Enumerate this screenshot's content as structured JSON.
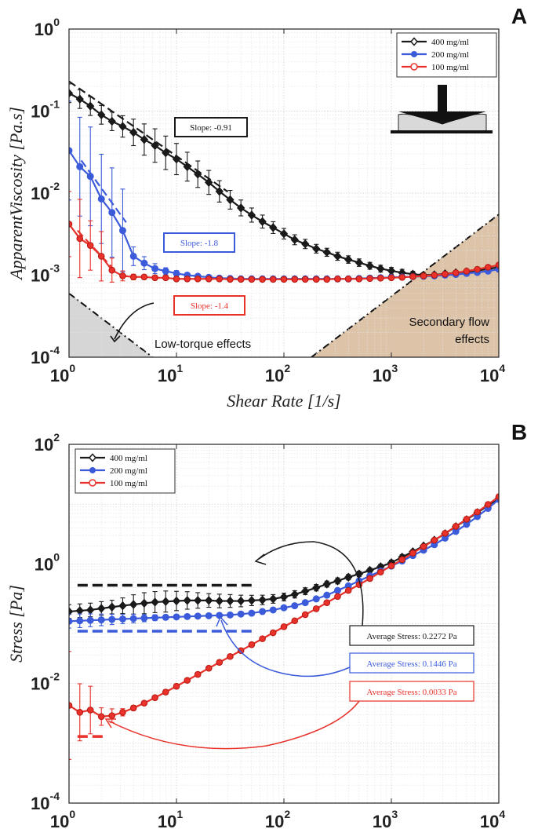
{
  "chart_data": [
    {
      "panel": "A",
      "type": "line",
      "xlabel": "Shear Rate [1/s]",
      "ylabel": "ApparentViscosity [Pa.s]",
      "xscale": "log",
      "yscale": "log",
      "xlim": [
        1,
        10000
      ],
      "ylim": [
        0.0001,
        1
      ],
      "grid": true,
      "legend_position": "top-right",
      "x_ticks": [
        {
          "base": "10",
          "exp": "0"
        },
        {
          "base": "10",
          "exp": "1"
        },
        {
          "base": "10",
          "exp": "2"
        },
        {
          "base": "10",
          "exp": "3"
        },
        {
          "base": "10",
          "exp": "4"
        }
      ],
      "y_ticks": [
        {
          "base": "10",
          "exp": "-4"
        },
        {
          "base": "10",
          "exp": "-3"
        },
        {
          "base": "10",
          "exp": "-2"
        },
        {
          "base": "10",
          "exp": "-1"
        },
        {
          "base": "10",
          "exp": "0"
        }
      ],
      "series": [
        {
          "name": "400 mg/ml",
          "color": "#1a1a1a",
          "marker": "diamond",
          "x": [
            1.0,
            1.26,
            1.58,
            2.0,
            2.51,
            3.16,
            3.98,
            5.01,
            6.31,
            7.94,
            10.0,
            12.6,
            15.8,
            20.0,
            25.1,
            31.6,
            39.8,
            50.1,
            63.1,
            79.4,
            100,
            126,
            158,
            200,
            251,
            316,
            398,
            501,
            631,
            794,
            1000,
            1259,
            1585,
            1995,
            2512,
            3162,
            3981,
            5012,
            6310,
            7943,
            10000
          ],
          "y": [
            0.165,
            0.14,
            0.115,
            0.09,
            0.075,
            0.065,
            0.055,
            0.045,
            0.038,
            0.031,
            0.026,
            0.021,
            0.017,
            0.0135,
            0.0105,
            0.0083,
            0.0066,
            0.0054,
            0.0045,
            0.0038,
            0.0032,
            0.0027,
            0.0024,
            0.0021,
            0.0019,
            0.0017,
            0.00155,
            0.00142,
            0.0013,
            0.0012,
            0.00113,
            0.00107,
            0.00103,
            0.001,
            0.00101,
            0.00104,
            0.00107,
            0.0011,
            0.00114,
            0.00119,
            0.00125
          ],
          "err_factor": [
            1.3,
            1.3,
            1.3,
            1.3,
            1.3,
            1.35,
            1.45,
            1.55,
            1.6,
            1.6,
            1.55,
            1.5,
            1.45,
            1.4,
            1.35,
            1.3,
            1.25,
            1.22,
            1.2,
            1.18,
            1.16,
            1.15,
            1.14,
            1.13,
            1.12,
            1.12,
            1.11,
            1.11,
            1.1,
            1.1,
            1.1,
            1.1,
            1.08,
            1.06,
            1.06,
            1.06,
            1.06,
            1.06,
            1.06,
            1.06,
            1.06
          ]
        },
        {
          "name": "200 mg/ml",
          "color": "#3b5bdb",
          "marker": "circle",
          "x": [
            1.0,
            1.26,
            1.58,
            2.0,
            2.51,
            3.16,
            3.98,
            5.01,
            6.31,
            7.94,
            10.0,
            12.6,
            15.8,
            20.0,
            25.1,
            31.6,
            39.8,
            50.1,
            63.1,
            79.4,
            100,
            126,
            158,
            200,
            251,
            316,
            398,
            501,
            631,
            794,
            1000,
            1259,
            1585,
            1995,
            2512,
            3162,
            3981,
            5012,
            6310,
            7943,
            10000
          ],
          "y": [
            0.033,
            0.021,
            0.016,
            0.0085,
            0.0058,
            0.0035,
            0.0017,
            0.0014,
            0.0012,
            0.00112,
            0.00105,
            0.001,
            0.00097,
            0.00094,
            0.00092,
            0.00091,
            0.0009,
            0.0009,
            0.0009,
            0.0009,
            0.0009,
            0.0009,
            0.0009,
            0.0009,
            0.0009,
            0.0009,
            0.0009,
            0.00091,
            0.00092,
            0.00093,
            0.00094,
            0.00095,
            0.00096,
            0.00097,
            0.00098,
            0.001,
            0.00102,
            0.00105,
            0.00108,
            0.00112,
            0.00118
          ],
          "err_factor": [
            4.0,
            4.0,
            4.0,
            3.5,
            3.5,
            3.2,
            1.3,
            1.2,
            1.15,
            1.1,
            1.08,
            1.06,
            1.05,
            1.05,
            1.05,
            1.04,
            1.04,
            1.04,
            1.04,
            1.04,
            1.04,
            1.04,
            1.04,
            1.04,
            1.04,
            1.04,
            1.04,
            1.04,
            1.04,
            1.04,
            1.04,
            1.04,
            1.04,
            1.04,
            1.04,
            1.04,
            1.04,
            1.04,
            1.04,
            1.04,
            1.04
          ]
        },
        {
          "name": "100 mg/ml",
          "color": "#e8322b",
          "marker": "open-circle",
          "x": [
            1.0,
            1.26,
            1.58,
            2.0,
            2.51,
            3.16,
            3.98,
            5.01,
            6.31,
            7.94,
            10.0,
            12.6,
            15.8,
            20.0,
            25.1,
            31.6,
            39.8,
            50.1,
            63.1,
            79.4,
            100,
            126,
            158,
            200,
            251,
            316,
            398,
            501,
            631,
            794,
            1000,
            1259,
            1585,
            1995,
            2512,
            3162,
            3981,
            5012,
            6310,
            7943,
            10000
          ],
          "y": [
            0.0042,
            0.0028,
            0.0023,
            0.0017,
            0.00115,
            0.00098,
            0.00095,
            0.00095,
            0.00093,
            0.00093,
            0.0009,
            0.0009,
            0.0009,
            0.0009,
            0.0009,
            0.00089,
            0.00089,
            0.00089,
            0.00089,
            0.00089,
            0.00089,
            0.00089,
            0.00089,
            0.00089,
            0.00089,
            0.0009,
            0.0009,
            0.0009,
            0.00091,
            0.00092,
            0.00093,
            0.00094,
            0.00096,
            0.00098,
            0.001,
            0.00103,
            0.00107,
            0.00112,
            0.00118,
            0.00125,
            0.00133
          ],
          "err_factor": [
            2.5,
            3.0,
            2.0,
            2.0,
            1.4,
            1.15,
            1.08,
            1.06,
            1.05,
            1.05,
            1.04,
            1.04,
            1.03,
            1.03,
            1.03,
            1.03,
            1.03,
            1.03,
            1.03,
            1.03,
            1.03,
            1.03,
            1.03,
            1.03,
            1.03,
            1.03,
            1.03,
            1.03,
            1.03,
            1.03,
            1.03,
            1.03,
            1.03,
            1.03,
            1.03,
            1.03,
            1.03,
            1.03,
            1.03,
            1.03,
            1.03
          ]
        }
      ],
      "fit_lines": [
        {
          "color": "#1a1a1a",
          "x": [
            1.0,
            30
          ],
          "y": [
            0.23,
            0.0104
          ]
        },
        {
          "color": "#3b5bdb",
          "x": [
            1.3,
            3.4
          ],
          "y": [
            0.025,
            0.0044
          ]
        },
        {
          "color": "#e8322b",
          "x": [
            1.2,
            2.8
          ],
          "y": [
            0.0035,
            0.00107
          ]
        }
      ],
      "annotations": [
        {
          "text": "Slope: -0.91",
          "color": "#1a1a1a"
        },
        {
          "text": "Slope: -1.8",
          "color": "#3b5bdb"
        },
        {
          "text": "Slope: -1.4",
          "color": "#e8322b"
        }
      ],
      "regions": [
        {
          "text": "Low-torque effects",
          "color": "#cfcfcf"
        },
        {
          "text": "Secondary flow\neffects",
          "color": "#d7b899"
        }
      ]
    },
    {
      "panel": "B",
      "type": "line",
      "xlabel": "Shear Rate [1/s]",
      "ylabel": "Stress [Pa]",
      "xscale": "log",
      "yscale": "log",
      "xlim": [
        1,
        10000
      ],
      "ylim": [
        0.0001,
        100
      ],
      "grid": true,
      "legend_position": "top-left",
      "x_ticks": [
        {
          "base": "10",
          "exp": "0"
        },
        {
          "base": "10",
          "exp": "1"
        },
        {
          "base": "10",
          "exp": "2"
        },
        {
          "base": "10",
          "exp": "3"
        },
        {
          "base": "10",
          "exp": "4"
        }
      ],
      "y_ticks": [
        {
          "base": "10",
          "exp": "-4"
        },
        {
          "base": "10",
          "exp": "-2"
        },
        {
          "base": "10",
          "exp": "0"
        },
        {
          "base": "10",
          "exp": "2"
        }
      ],
      "series": [
        {
          "name": "400 mg/ml",
          "color": "#1a1a1a",
          "marker": "diamond",
          "x": [
            1.0,
            1.26,
            1.58,
            2.0,
            2.51,
            3.16,
            3.98,
            5.01,
            6.31,
            7.94,
            10.0,
            12.6,
            15.8,
            20.0,
            25.1,
            31.6,
            39.8,
            50.1,
            63.1,
            79.4,
            100,
            126,
            158,
            200,
            251,
            316,
            398,
            501,
            631,
            794,
            1000,
            1259,
            1585,
            1995,
            2512,
            3162,
            3981,
            5012,
            6310,
            7943,
            10000
          ],
          "y": [
            0.16,
            0.165,
            0.17,
            0.18,
            0.19,
            0.2,
            0.21,
            0.22,
            0.23,
            0.235,
            0.24,
            0.245,
            0.245,
            0.245,
            0.24,
            0.24,
            0.24,
            0.245,
            0.25,
            0.26,
            0.28,
            0.31,
            0.35,
            0.4,
            0.46,
            0.52,
            0.6,
            0.68,
            0.78,
            0.9,
            1.05,
            1.3,
            1.6,
            2.0,
            2.5,
            3.2,
            4.2,
            5.5,
            7.2,
            9.5,
            12.5
          ],
          "err_factor": [
            1.3,
            1.3,
            1.3,
            1.3,
            1.3,
            1.35,
            1.45,
            1.5,
            1.5,
            1.5,
            1.45,
            1.4,
            1.35,
            1.3,
            1.3,
            1.28,
            1.25,
            1.22,
            1.2,
            1.18,
            1.16,
            1.15,
            1.14,
            1.13,
            1.12,
            1.12,
            1.11,
            1.11,
            1.1,
            1.1,
            1.1,
            1.1,
            1.08,
            1.06,
            1.06,
            1.06,
            1.06,
            1.06,
            1.06,
            1.06,
            1.06
          ]
        },
        {
          "name": "200 mg/ml",
          "color": "#3b5bdb",
          "marker": "circle",
          "x": [
            1.0,
            1.26,
            1.58,
            2.0,
            2.51,
            3.16,
            3.98,
            5.01,
            6.31,
            7.94,
            10.0,
            12.6,
            15.8,
            20.0,
            25.1,
            31.6,
            39.8,
            50.1,
            63.1,
            79.4,
            100,
            126,
            158,
            200,
            251,
            316,
            398,
            501,
            631,
            794,
            1000,
            1259,
            1585,
            1995,
            2512,
            3162,
            3981,
            5012,
            6310,
            7943,
            10000
          ],
          "y": [
            0.11,
            0.112,
            0.114,
            0.116,
            0.118,
            0.12,
            0.122,
            0.124,
            0.126,
            0.128,
            0.13,
            0.132,
            0.134,
            0.136,
            0.138,
            0.14,
            0.145,
            0.15,
            0.16,
            0.17,
            0.185,
            0.2,
            0.225,
            0.26,
            0.3,
            0.36,
            0.43,
            0.52,
            0.63,
            0.76,
            0.92,
            1.12,
            1.38,
            1.7,
            2.1,
            2.7,
            3.5,
            4.6,
            6.2,
            8.5,
            12.0
          ],
          "err_factor": [
            1.3,
            1.3,
            1.28,
            1.25,
            1.22,
            1.2,
            1.18,
            1.15,
            1.12,
            1.1,
            1.08,
            1.06,
            1.05,
            1.05,
            1.05,
            1.04,
            1.04,
            1.04,
            1.04,
            1.04,
            1.04,
            1.04,
            1.04,
            1.04,
            1.04,
            1.04,
            1.04,
            1.04,
            1.04,
            1.04,
            1.04,
            1.04,
            1.04,
            1.04,
            1.04,
            1.04,
            1.04,
            1.04,
            1.04,
            1.04,
            1.04
          ]
        },
        {
          "name": "100 mg/ml",
          "color": "#e8322b",
          "marker": "open-circle",
          "x": [
            1.0,
            1.26,
            1.58,
            2.0,
            2.51,
            3.16,
            3.98,
            5.01,
            6.31,
            7.94,
            10.0,
            12.6,
            15.8,
            20.0,
            25.1,
            31.6,
            39.8,
            50.1,
            63.1,
            79.4,
            100,
            126,
            158,
            200,
            251,
            316,
            398,
            501,
            631,
            794,
            1000,
            1259,
            1585,
            1995,
            2512,
            3162,
            3981,
            5012,
            6310,
            7943,
            10000
          ],
          "y": [
            0.0043,
            0.0033,
            0.0036,
            0.0028,
            0.0029,
            0.0033,
            0.0039,
            0.0047,
            0.0058,
            0.0072,
            0.009,
            0.0113,
            0.0142,
            0.018,
            0.0226,
            0.0283,
            0.0355,
            0.0446,
            0.0561,
            0.0706,
            0.089,
            0.112,
            0.142,
            0.178,
            0.225,
            0.285,
            0.36,
            0.45,
            0.57,
            0.73,
            0.93,
            1.18,
            1.52,
            1.95,
            2.5,
            3.25,
            4.25,
            5.6,
            7.4,
            9.9,
            13.3
          ],
          "err_factor": [
            8.0,
            3.0,
            2.5,
            1.4,
            1.3,
            1.15,
            1.1,
            1.08,
            1.06,
            1.05,
            1.04,
            1.04,
            1.03,
            1.03,
            1.03,
            1.03,
            1.03,
            1.03,
            1.03,
            1.03,
            1.03,
            1.03,
            1.03,
            1.03,
            1.03,
            1.03,
            1.03,
            1.03,
            1.03,
            1.03,
            1.03,
            1.03,
            1.03,
            1.03,
            1.03,
            1.03,
            1.03,
            1.03,
            1.03,
            1.03,
            1.03
          ]
        }
      ],
      "reference_lines": [
        {
          "color": "#1a1a1a",
          "value": 0.2272,
          "x": [
            1.2,
            50
          ]
        },
        {
          "color": "#3b5bdb",
          "value": 0.1446,
          "x": [
            1.2,
            50
          ]
        },
        {
          "color": "#e8322b",
          "value": 0.0033,
          "x": [
            1.2,
            2.1
          ]
        }
      ],
      "annotations": [
        {
          "text": "Average Stress: 0.2272 Pa",
          "color": "#1a1a1a"
        },
        {
          "text": "Average Stress: 0.1446 Pa",
          "color": "#3b5bdb"
        },
        {
          "text": "Average Stress: 0.0033 Pa",
          "color": "#e8322b"
        }
      ]
    }
  ]
}
